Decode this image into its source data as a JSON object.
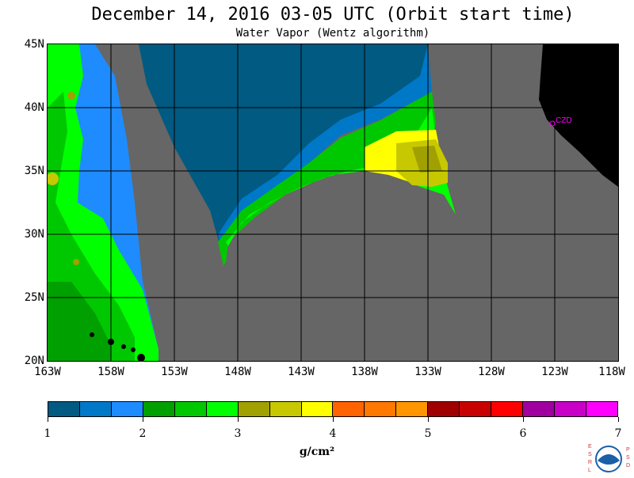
{
  "header": {
    "title": "December 14, 2016  03-05 UTC  (Orbit start time)",
    "subtitle": "Water Vapor (Wentz algorithm)"
  },
  "map": {
    "lat_labels": [
      "45N",
      "40N",
      "35N",
      "30N",
      "25N",
      "20N"
    ],
    "lon_labels": [
      "163W",
      "158W",
      "153W",
      "148W",
      "143W",
      "138W",
      "133W",
      "128W",
      "123W",
      "118W"
    ],
    "lat_range": [
      20,
      45
    ],
    "lon_range": [
      -163,
      -118
    ],
    "no_data_color": "#666666",
    "land_color": "#000000",
    "station_label": "CZD",
    "station_color": "#ff00ff"
  },
  "colorbar": {
    "units": "g/cm²",
    "tick_labels": [
      "1",
      "2",
      "3",
      "4",
      "5",
      "6",
      "7"
    ],
    "colors": [
      "#005a82",
      "#0078c8",
      "#1e8cff",
      "#00a000",
      "#00c800",
      "#00ff00",
      "#a0a000",
      "#c8c800",
      "#ffff00",
      "#ff6400",
      "#ff7800",
      "#ff9600",
      "#a00000",
      "#c80000",
      "#ff0000",
      "#a000a0",
      "#c800c8",
      "#ff00ff"
    ]
  },
  "logo": {
    "left_text": "ESRL",
    "right_text": "PSD",
    "center_text": "NOAA"
  }
}
